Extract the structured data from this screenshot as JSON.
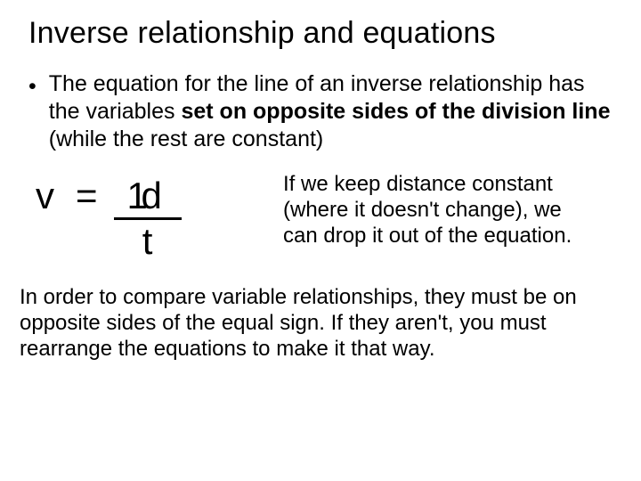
{
  "title": "Inverse relationship and equations",
  "bullet_glyph": "•",
  "para1_a": "The equation for the line of an inverse relationship has the variables ",
  "para1_b": "set on opposite sides of the division line",
  "para1_c": " (while the rest are constant)",
  "equation": {
    "v": "v",
    "eq": "=",
    "top_one": "1",
    "top_d": "d",
    "bot": "t"
  },
  "sidenote": "If we keep distance constant (where it doesn't change), we can drop it out of the equation.",
  "para2": "In order to compare variable relationships, they must be on opposite sides of the equal sign. If they aren't, you must rearrange the equations to make it that way.",
  "colors": {
    "bg": "#ffffff",
    "text": "#000000",
    "line": "#000000"
  },
  "fontsizes": {
    "title": 34,
    "body": 25,
    "equation": 42,
    "sidenote": 24,
    "footer": 24
  }
}
